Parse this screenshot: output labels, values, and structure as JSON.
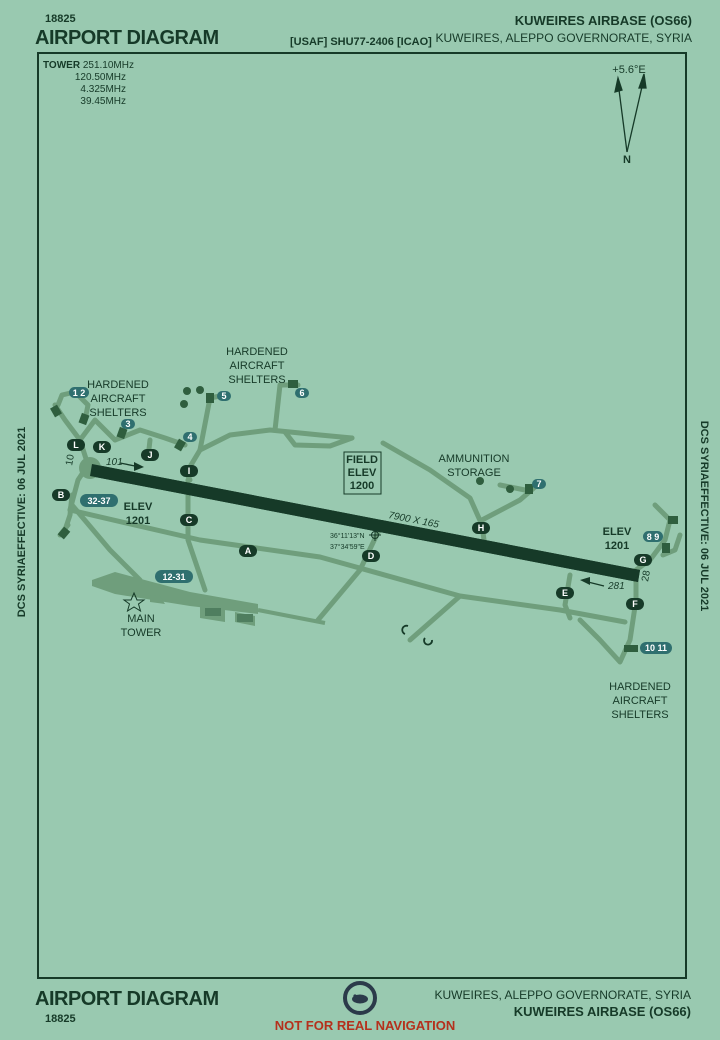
{
  "header": {
    "chart_no": "18825",
    "title": "AIRPORT DIAGRAM",
    "code_line": "[USAF] SHU77-2406 [ICAO]",
    "airport_name": "KUWEIRES AIRBASE (OS66)",
    "location": "KUWEIRES, ALEPPO GOVERNORATE, SYRIA"
  },
  "footer": {
    "title": "AIRPORT DIAGRAM",
    "chart_no": "18825",
    "location": "KUWEIRES, ALEPPO GOVERNORATE, SYRIA",
    "airport_name": "KUWEIRES AIRBASE (OS66)",
    "warning": "NOT FOR REAL NAVIGATION",
    "warning_color": "#b5301c"
  },
  "side_text": "DCS SYRIAEFFECTIVE: 06 JUL 2021",
  "tower": {
    "label": "TOWER",
    "freqs": [
      "251.10MHz",
      "120.50MHz",
      "4.325MHz",
      "39.45MHz"
    ]
  },
  "north": {
    "variation": "+5.6°E",
    "letter": "N"
  },
  "runway": {
    "end_west": "10",
    "end_east": "28",
    "heading_west": "101",
    "heading_east": "281",
    "dimensions": "7900 X 165"
  },
  "field_elev": {
    "line1": "FIELD",
    "line2": "ELEV",
    "value": "1200"
  },
  "elev_west": {
    "label": "ELEV",
    "value": "1201"
  },
  "elev_east": {
    "label": "ELEV",
    "value": "1201"
  },
  "arp": {
    "lat": "36°11'13\"N",
    "lon": "37°34'59\"E"
  },
  "taxiways": [
    "A",
    "B",
    "C",
    "D",
    "E",
    "F",
    "G",
    "H",
    "I",
    "J",
    "K",
    "L"
  ],
  "parking": [
    "1 2",
    "3",
    "4",
    "5",
    "6",
    "7",
    "8 9",
    "10 11",
    "32-37",
    "12-31"
  ],
  "labels": {
    "shelters_nw": [
      "HARDENED",
      "AIRCRAFT",
      "SHELTERS"
    ],
    "shelters_n": [
      "HARDENED",
      "AIRCRAFT",
      "SHELTERS"
    ],
    "shelters_se": [
      "HARDENED",
      "AIRCRAFT",
      "SHELTERS"
    ],
    "ammo": [
      "AMMUNITION",
      "STORAGE"
    ],
    "main_tower": [
      "MAIN",
      "TOWER"
    ]
  },
  "colors": {
    "background": "#99c9b0",
    "ink": "#163a28",
    "taxiway": "#6f9e7c",
    "badge": "#2f6f6f"
  }
}
